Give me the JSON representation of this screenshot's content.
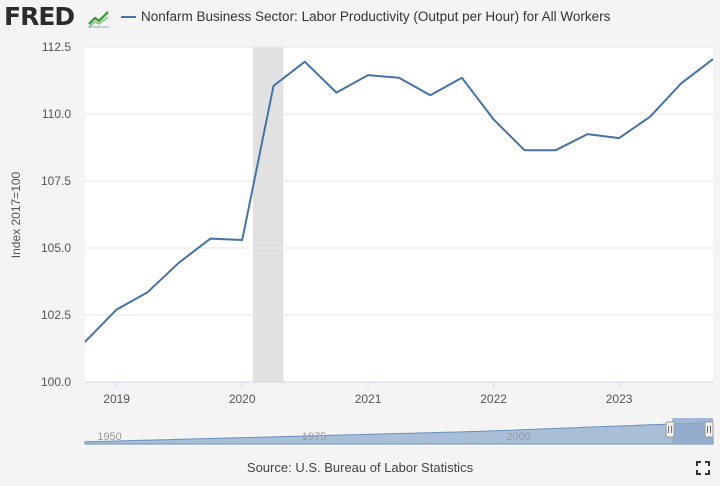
{
  "header": {
    "logo": "FRED",
    "logo_icon": "chart-line-icon"
  },
  "chart_data": {
    "type": "line",
    "series": [
      {
        "name": "Nonfarm Business Sector: Labor Productivity (Output per Hour) for All Workers",
        "color": "#4572a7",
        "x": [
          "2018-10-01",
          "2019-01-01",
          "2019-04-01",
          "2019-07-01",
          "2019-10-01",
          "2020-01-01",
          "2020-04-01",
          "2020-07-01",
          "2020-10-01",
          "2021-01-01",
          "2021-04-01",
          "2021-07-01",
          "2021-10-01",
          "2022-01-01",
          "2022-04-01",
          "2022-07-01",
          "2022-10-01",
          "2023-01-01",
          "2023-04-01",
          "2023-07-01",
          "2023-10-01"
        ],
        "values": [
          101.5,
          102.7,
          103.35,
          104.45,
          105.35,
          105.3,
          111.05,
          111.95,
          110.8,
          111.45,
          111.35,
          110.7,
          111.35,
          109.8,
          108.65,
          108.65,
          109.25,
          109.1,
          109.9,
          111.15,
          112.05
        ]
      }
    ],
    "ylabel": "Index 2017=100",
    "y_ticks": [
      "100.0",
      "102.5",
      "105.0",
      "107.5",
      "110.0",
      "112.5"
    ],
    "x_ticks": [
      "2019",
      "2020",
      "2021",
      "2022",
      "2023"
    ],
    "ylim": [
      100,
      112.5
    ],
    "xlim": [
      "2018-10-01",
      "2023-10-01"
    ],
    "recession": {
      "start": "2020-02-01",
      "end": "2020-04-30",
      "color": "#e1e1e1"
    },
    "grid": true,
    "navigator": {
      "labels": [
        "1950",
        "1975",
        "2000"
      ],
      "xlim": [
        "1947-01-01",
        "2023-10-01"
      ],
      "selected": [
        "2018-10-01",
        "2023-10-01"
      ]
    }
  },
  "footer": {
    "source": "Source: U.S. Bureau of Labor Statistics",
    "fullscreen_icon": "fullscreen-icon"
  }
}
